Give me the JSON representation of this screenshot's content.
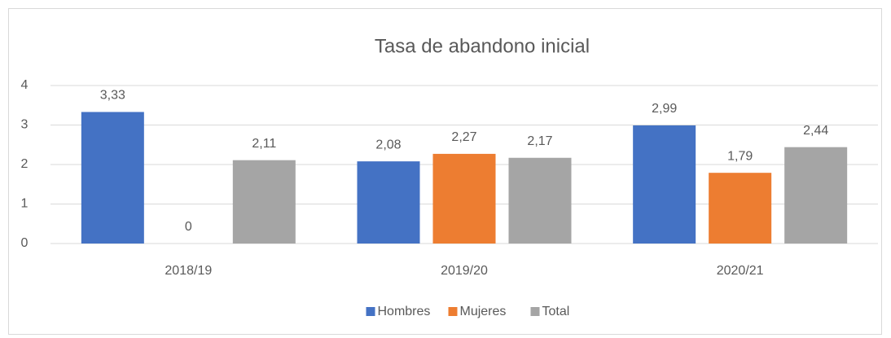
{
  "chart_data": {
    "type": "bar",
    "title": "Tasa de abandono inicial",
    "categories": [
      "2018/19",
      "2019/20",
      "2020/21"
    ],
    "series": [
      {
        "name": "Hombres",
        "color": "#4472c4",
        "values": [
          3.33,
          2.08,
          2.99
        ],
        "value_labels": [
          "3,33",
          "2,08",
          "2,99"
        ]
      },
      {
        "name": "Mujeres",
        "color": "#ed7d31",
        "values": [
          0,
          2.27,
          1.79
        ],
        "value_labels": [
          "0",
          "2,27",
          "1,79"
        ]
      },
      {
        "name": "Total",
        "color": "#a5a5a5",
        "values": [
          2.11,
          2.17,
          2.44
        ],
        "value_labels": [
          "2,11",
          "2,17",
          "2,44"
        ]
      }
    ],
    "ylim": [
      0,
      4
    ],
    "yticks": [
      0,
      1,
      2,
      3,
      4
    ],
    "grid": true,
    "legend": "bottom"
  }
}
